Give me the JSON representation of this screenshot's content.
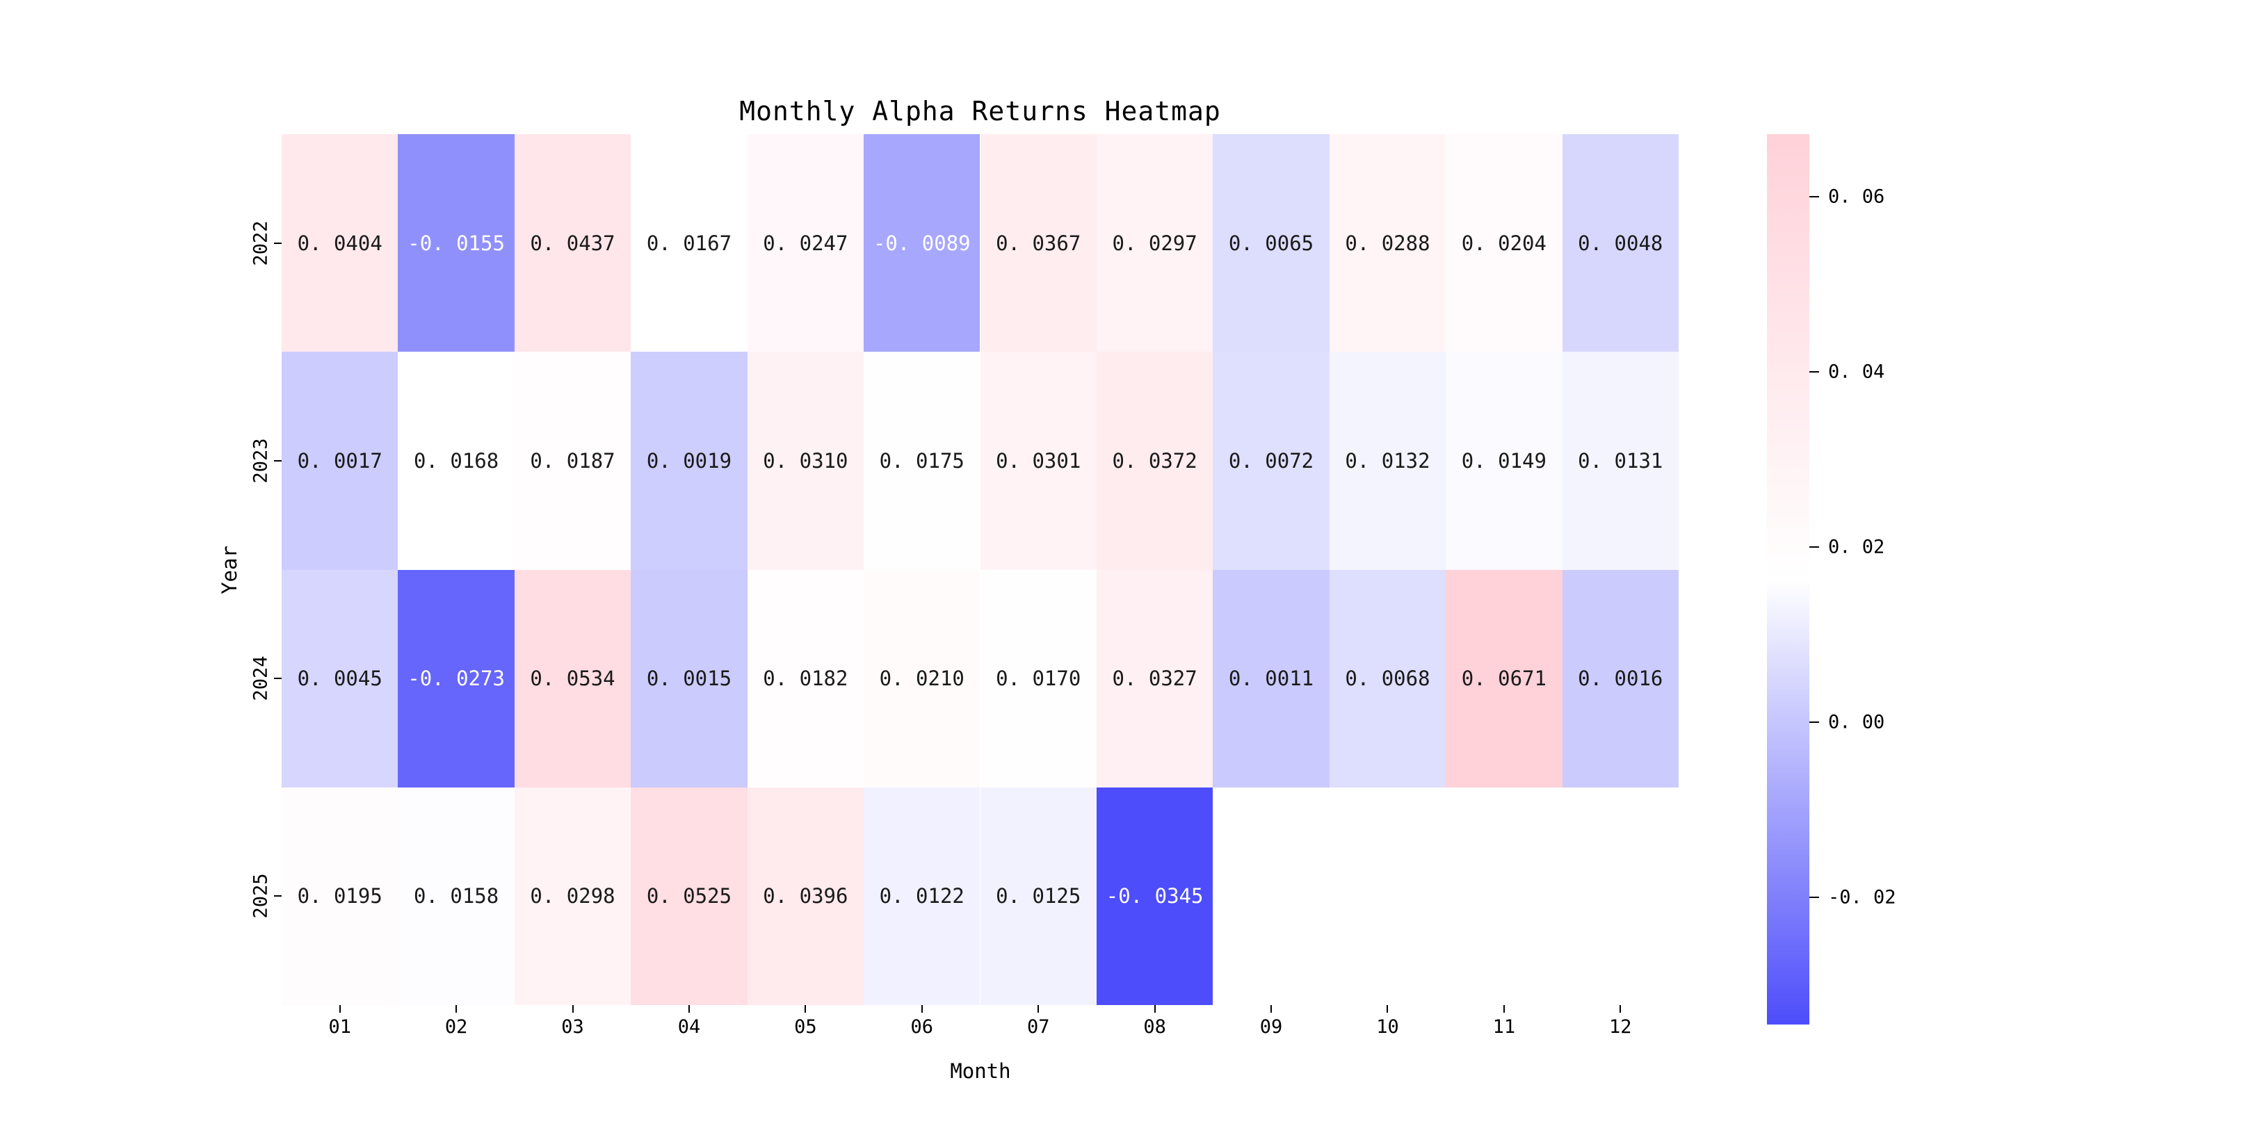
{
  "chart_data": {
    "type": "heatmap",
    "title": "Monthly Alpha Returns Heatmap",
    "xlabel": "Month",
    "ylabel": "Year",
    "x_categories": [
      "01",
      "02",
      "03",
      "04",
      "05",
      "06",
      "07",
      "08",
      "09",
      "10",
      "11",
      "12"
    ],
    "y_categories": [
      "2022",
      "2023",
      "2024",
      "2025"
    ],
    "series": [
      {
        "name": "2022",
        "values": [
          0.0404,
          -0.0155,
          0.0437,
          0.0167,
          0.0247,
          -0.0089,
          0.0367,
          0.0297,
          0.0065,
          0.0288,
          0.0204,
          0.0048
        ]
      },
      {
        "name": "2023",
        "values": [
          0.0017,
          0.0168,
          0.0187,
          0.0019,
          0.031,
          0.0175,
          0.0301,
          0.0372,
          0.0072,
          0.0132,
          0.0149,
          0.0131
        ]
      },
      {
        "name": "2024",
        "values": [
          0.0045,
          -0.0273,
          0.0534,
          0.0015,
          0.0182,
          0.021,
          0.017,
          0.0327,
          0.0011,
          0.0068,
          0.0671,
          0.0016
        ]
      },
      {
        "name": "2025",
        "values": [
          0.0195,
          0.0158,
          0.0298,
          0.0525,
          0.0396,
          0.0122,
          0.0125,
          -0.0345,
          null,
          null,
          null,
          null
        ]
      }
    ],
    "value_format_decimals": 4,
    "colorbar": {
      "tick_values": [
        0.06,
        0.04,
        0.02,
        0.0,
        -0.02
      ],
      "tick_labels": [
        "0.06",
        "0.04",
        "0.02",
        "0.00",
        "-0.02"
      ],
      "vmin": -0.0345,
      "vmax": 0.0671,
      "color_min": "#4D4DFB",
      "color_mid": "#FFFFFF",
      "color_max": "#FFD1D9"
    },
    "grid": false,
    "legend": false,
    "annotation_dark_text_color": "#1a1a1a",
    "annotation_light_text_color": "#ffffff",
    "background_color": "#ffffff"
  }
}
